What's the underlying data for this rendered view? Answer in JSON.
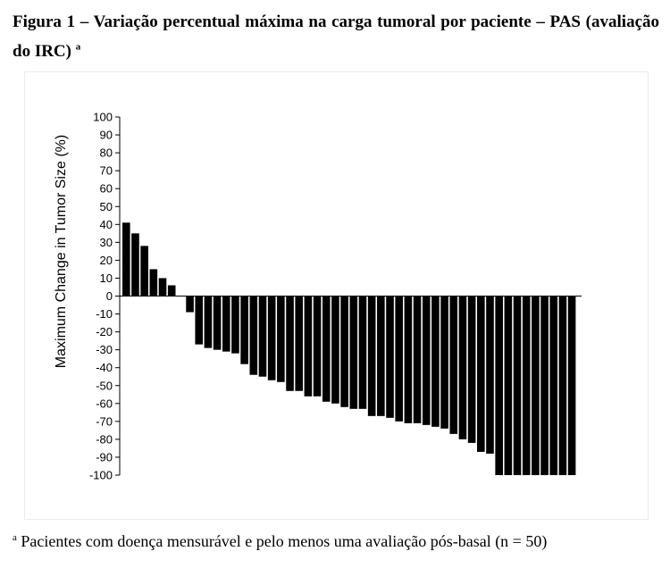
{
  "figure": {
    "title": "Figura 1 – Variação percentual máxima na carga tumoral por paciente – PAS (avaliação do IRC)",
    "title_marker": "a",
    "footnote_marker": "a",
    "footnote": "Pacientes com doença mensurável e pelo menos uma avaliação pós-basal (n = 50)"
  },
  "chart_data": {
    "type": "bar",
    "title": "",
    "xlabel": "",
    "ylabel": "Maximum Change in Tumor Size (%)",
    "ylim": [
      -100,
      100
    ],
    "yticks": [
      100,
      90,
      80,
      70,
      60,
      50,
      40,
      30,
      20,
      10,
      0,
      -10,
      -20,
      -30,
      -40,
      -50,
      -60,
      -70,
      -80,
      -90,
      -100
    ],
    "grid": false,
    "legend": "none",
    "bar_color": "#000000",
    "values": [
      41,
      35,
      28,
      15,
      10,
      6,
      0,
      -9,
      -27,
      -29,
      -30,
      -31,
      -32,
      -38,
      -44,
      -45,
      -47,
      -48,
      -53,
      -53,
      -56,
      -56,
      -59,
      -60,
      -62,
      -63,
      -63,
      -67,
      -67,
      -68,
      -70,
      -71,
      -71,
      -72,
      -73,
      -74,
      -77,
      -80,
      -82,
      -87,
      -88,
      -100,
      -100,
      -100,
      -100,
      -100,
      -100,
      -100,
      -100,
      -100
    ]
  }
}
